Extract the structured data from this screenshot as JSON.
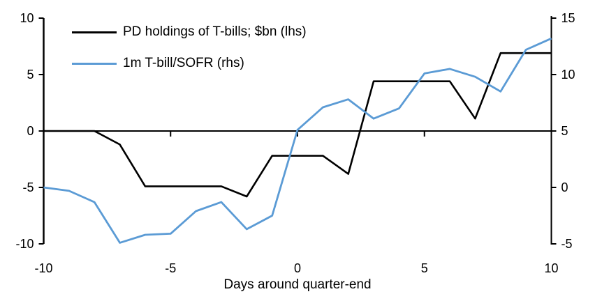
{
  "x_axis_title": "Days around quarter-end",
  "legend": {
    "items": [
      {
        "label": "PD holdings of T-bills; $bn (lhs)",
        "color": "#000000"
      },
      {
        "label": "1m T-bill/SOFR (rhs)",
        "color": "#5B9BD5"
      }
    ]
  },
  "chart_data": {
    "type": "line",
    "title": "",
    "xlabel": "Days around quarter-end",
    "grid": false,
    "legend_position": "top-left",
    "x": [
      -10,
      -9,
      -8,
      -7,
      -6,
      -5,
      -4,
      -3,
      -2,
      -1,
      0,
      1,
      2,
      3,
      4,
      5,
      6,
      7,
      8,
      9,
      10
    ],
    "series": [
      {
        "name": "PD holdings of T-bills; $bn (lhs)",
        "axis": "left",
        "color": "#000000",
        "values": [
          0,
          0,
          0,
          -1.2,
          -4.9,
          -4.9,
          -4.9,
          -4.9,
          -5.8,
          -2.2,
          -2.2,
          -2.2,
          -3.8,
          4.4,
          4.4,
          4.4,
          4.4,
          1.1,
          6.9,
          6.9,
          6.9
        ]
      },
      {
        "name": "1m T-bill/SOFR (rhs)",
        "axis": "right",
        "color": "#5B9BD5",
        "values": [
          0.0,
          -0.3,
          -1.3,
          -4.9,
          -4.2,
          -4.1,
          -2.1,
          -1.3,
          -3.7,
          -2.5,
          5.1,
          7.1,
          7.8,
          6.1,
          7.0,
          10.1,
          10.5,
          9.8,
          8.5,
          12.2,
          13.2
        ]
      }
    ],
    "left_axis": {
      "ticks": [
        10,
        5,
        0,
        -5,
        -10
      ],
      "range": [
        -10,
        10
      ]
    },
    "right_axis": {
      "ticks": [
        15,
        10,
        5,
        0,
        -5
      ],
      "range": [
        -5,
        15
      ]
    },
    "x_axis": {
      "ticks": [
        -10,
        -5,
        0,
        5,
        10
      ],
      "range": [
        -10,
        10
      ]
    }
  }
}
